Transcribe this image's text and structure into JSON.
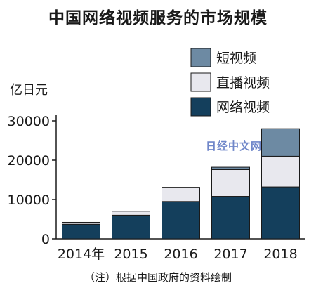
{
  "title": "中国网络视频服务的市场规模",
  "note": "（注）根据中国政府的资料绘制",
  "watermark": "日经中文网",
  "colors": {
    "short_video": "#6d8aa3",
    "live_stream": "#e8e8ee",
    "online_video": "#143f5c",
    "stroke": "#1a1a1a"
  },
  "chart_data": {
    "type": "bar",
    "stacked": true,
    "ylabel": "亿日元",
    "ylim": [
      0,
      30000
    ],
    "yticks": [
      0,
      10000,
      20000,
      30000
    ],
    "grid": false,
    "legend_position": "top-right",
    "categories": [
      "2014年",
      "2015",
      "2016",
      "2017",
      "2018"
    ],
    "series": [
      {
        "name": "网络视频",
        "color": "#143f5c",
        "values": [
          3700,
          6000,
          9500,
          10800,
          13200
        ]
      },
      {
        "name": "直播视频",
        "color": "#e8e8ee",
        "values": [
          500,
          1000,
          3500,
          6800,
          7800
        ]
      },
      {
        "name": "短视频",
        "color": "#6d8aa3",
        "values": [
          0,
          0,
          100,
          600,
          7000
        ]
      }
    ],
    "legend_order": [
      "短视频",
      "直播视频",
      "网络视频"
    ]
  }
}
